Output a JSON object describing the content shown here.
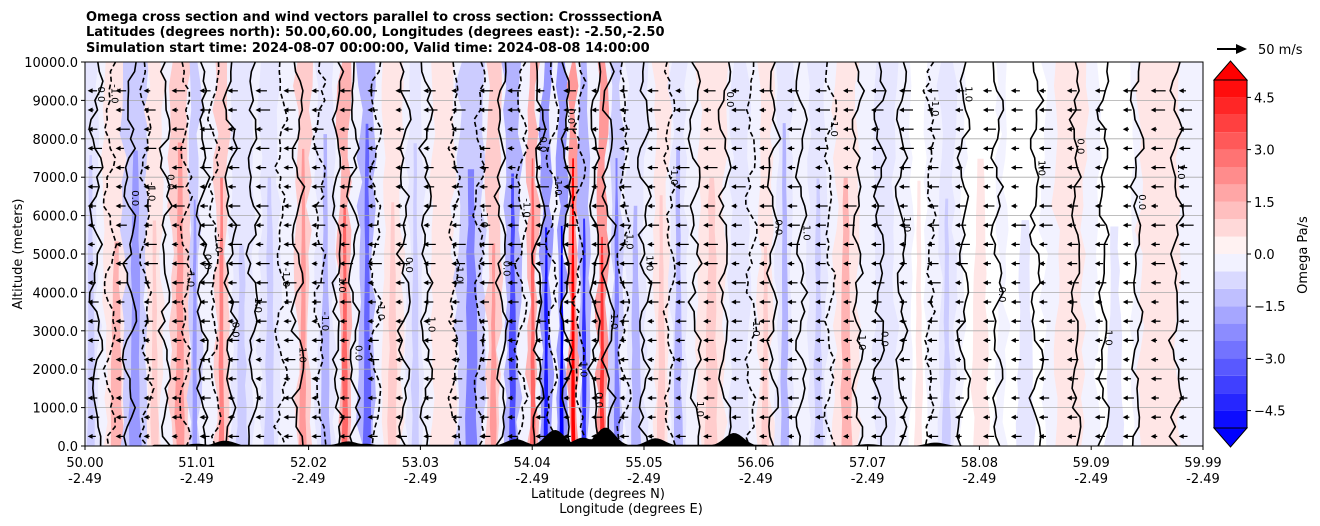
{
  "chart_data": {
    "type": "contour",
    "title_lines": [
      "Omega cross section and wind vectors parallel to cross section: CrosssectionA",
      "Latitudes (degrees north): 50.00,60.00, Longitudes (degrees east): -2.50,-2.50",
      "Simulation start time: 2024-08-07 00:00:00, Valid time: 2024-08-08 14:00:00"
    ],
    "ylabel": "Altitude (meters)",
    "xlabel_lat": "Latitude (degrees N)",
    "xlabel_lon": "Longitude (degrees E)",
    "ylim": [
      0,
      10000
    ],
    "y_ticks": [
      "0.0",
      "1000.0",
      "2000.0",
      "3000.0",
      "4000.0",
      "5000.0",
      "6000.0",
      "7000.0",
      "8000.0",
      "9000.0",
      "10000.0"
    ],
    "x_range": [
      50.0,
      59.99
    ],
    "x_ticks": [
      {
        "lat": "50.00",
        "lon": "-2.49"
      },
      {
        "lat": "51.01",
        "lon": "-2.49"
      },
      {
        "lat": "52.02",
        "lon": "-2.49"
      },
      {
        "lat": "53.03",
        "lon": "-2.49"
      },
      {
        "lat": "54.04",
        "lon": "-2.49"
      },
      {
        "lat": "55.05",
        "lon": "-2.49"
      },
      {
        "lat": "56.06",
        "lon": "-2.49"
      },
      {
        "lat": "57.07",
        "lon": "-2.49"
      },
      {
        "lat": "58.08",
        "lon": "-2.49"
      },
      {
        "lat": "59.09",
        "lon": "-2.49"
      },
      {
        "lat": "59.99",
        "lon": "-2.49"
      }
    ],
    "grid": "horizontal",
    "colorbar": {
      "label": "Omega Pa/s",
      "range": [
        -5.0,
        5.0
      ],
      "ticks": [
        "4.5",
        "3.0",
        "1.5",
        "0.0",
        "−1.5",
        "−3.0",
        "−4.5"
      ],
      "tick_values": [
        4.5,
        3.0,
        1.5,
        0.0,
        -1.5,
        -3.0,
        -4.5
      ],
      "levels": 20,
      "extend": "both",
      "cmap": "bwr"
    },
    "quiver_key": {
      "label": "50 m/s",
      "speed": 50
    },
    "contour_labels": [
      "0.0",
      "1.0",
      "-1.0",
      "-2.0"
    ],
    "bands": [
      {
        "lat": 50.05,
        "w": 0.08,
        "v": -1.0
      },
      {
        "lat": 50.28,
        "w": 0.12,
        "v": 1.5
      },
      {
        "lat": 50.45,
        "w": 0.12,
        "v": -1.8
      },
      {
        "lat": 50.62,
        "w": 0.08,
        "v": 1.2
      },
      {
        "lat": 50.85,
        "w": 0.1,
        "v": 2.2
      },
      {
        "lat": 50.98,
        "w": 0.06,
        "v": -2.0
      },
      {
        "lat": 51.22,
        "w": 0.06,
        "v": 2.5
      },
      {
        "lat": 51.4,
        "w": 0.12,
        "v": -1.2
      },
      {
        "lat": 51.65,
        "w": 0.1,
        "v": -0.8
      },
      {
        "lat": 51.95,
        "w": 0.07,
        "v": 1.8
      },
      {
        "lat": 52.15,
        "w": 0.09,
        "v": -1.5
      },
      {
        "lat": 52.32,
        "w": 0.06,
        "v": 3.2
      },
      {
        "lat": 52.52,
        "w": 0.08,
        "v": -2.8
      },
      {
        "lat": 52.75,
        "w": 0.1,
        "v": 1.0
      },
      {
        "lat": 52.95,
        "w": 0.08,
        "v": -0.9
      },
      {
        "lat": 53.2,
        "w": 0.12,
        "v": 0.6
      },
      {
        "lat": 53.45,
        "w": 0.14,
        "v": -2.5
      },
      {
        "lat": 53.65,
        "w": 0.07,
        "v": 2.0
      },
      {
        "lat": 53.82,
        "w": 0.08,
        "v": -3.5
      },
      {
        "lat": 54.0,
        "w": 0.05,
        "v": 3.0
      },
      {
        "lat": 54.12,
        "w": 0.05,
        "v": -4.5
      },
      {
        "lat": 54.26,
        "w": 0.04,
        "v": -5.0
      },
      {
        "lat": 54.36,
        "w": 0.04,
        "v": 4.8
      },
      {
        "lat": 54.46,
        "w": 0.05,
        "v": -3.8
      },
      {
        "lat": 54.62,
        "w": 0.05,
        "v": 4.0
      },
      {
        "lat": 54.75,
        "w": 0.06,
        "v": -2.4
      },
      {
        "lat": 54.92,
        "w": 0.1,
        "v": -1.4
      },
      {
        "lat": 55.15,
        "w": 0.08,
        "v": 0.9
      },
      {
        "lat": 55.3,
        "w": 0.08,
        "v": -1.6
      },
      {
        "lat": 55.6,
        "w": 0.14,
        "v": 0.9
      },
      {
        "lat": 55.85,
        "w": 0.1,
        "v": -0.7
      },
      {
        "lat": 56.08,
        "w": 0.07,
        "v": 1.1
      },
      {
        "lat": 56.25,
        "w": 0.08,
        "v": -1.3
      },
      {
        "lat": 56.55,
        "w": 0.09,
        "v": -1.0
      },
      {
        "lat": 56.8,
        "w": 0.12,
        "v": 1.6
      },
      {
        "lat": 57.15,
        "w": 0.1,
        "v": -0.6
      },
      {
        "lat": 57.45,
        "w": 0.08,
        "v": 0.5
      },
      {
        "lat": 57.7,
        "w": 0.08,
        "v": -1.1
      },
      {
        "lat": 58.0,
        "w": 0.18,
        "v": 0.5
      },
      {
        "lat": 58.4,
        "w": 0.2,
        "v": -0.4
      },
      {
        "lat": 58.8,
        "w": 0.16,
        "v": 0.6
      },
      {
        "lat": 59.2,
        "w": 0.18,
        "v": -0.3
      },
      {
        "lat": 59.6,
        "w": 0.2,
        "v": 0.7
      }
    ],
    "contours": [
      {
        "lat": 50.1,
        "style": "solid"
      },
      {
        "lat": 50.22,
        "style": "dashed"
      },
      {
        "lat": 50.4,
        "style": "solid"
      },
      {
        "lat": 50.55,
        "style": "dashed"
      },
      {
        "lat": 50.72,
        "style": "solid"
      },
      {
        "lat": 50.9,
        "style": "dashed"
      },
      {
        "lat": 51.05,
        "style": "solid"
      },
      {
        "lat": 51.15,
        "style": "dashed"
      },
      {
        "lat": 51.3,
        "style": "solid"
      },
      {
        "lat": 51.5,
        "style": "solid"
      },
      {
        "lat": 51.75,
        "style": "dashed"
      },
      {
        "lat": 51.9,
        "style": "solid"
      },
      {
        "lat": 52.1,
        "style": "dashed"
      },
      {
        "lat": 52.25,
        "style": "solid"
      },
      {
        "lat": 52.4,
        "style": "solid"
      },
      {
        "lat": 52.6,
        "style": "dashed"
      },
      {
        "lat": 52.85,
        "style": "solid"
      },
      {
        "lat": 53.05,
        "style": "solid"
      },
      {
        "lat": 53.3,
        "style": "dashed"
      },
      {
        "lat": 53.52,
        "style": "dashed"
      },
      {
        "lat": 53.72,
        "style": "solid"
      },
      {
        "lat": 53.9,
        "style": "dashed"
      },
      {
        "lat": 54.05,
        "style": "solid"
      },
      {
        "lat": 54.18,
        "style": "dashed"
      },
      {
        "lat": 54.3,
        "style": "solid"
      },
      {
        "lat": 54.41,
        "style": "dashed"
      },
      {
        "lat": 54.55,
        "style": "solid"
      },
      {
        "lat": 54.68,
        "style": "solid"
      },
      {
        "lat": 54.82,
        "style": "dashed"
      },
      {
        "lat": 55.0,
        "style": "solid"
      },
      {
        "lat": 55.22,
        "style": "dashed"
      },
      {
        "lat": 55.45,
        "style": "solid"
      },
      {
        "lat": 55.72,
        "style": "solid"
      },
      {
        "lat": 55.95,
        "style": "dashed"
      },
      {
        "lat": 56.15,
        "style": "solid"
      },
      {
        "lat": 56.4,
        "style": "solid"
      },
      {
        "lat": 56.65,
        "style": "dashed"
      },
      {
        "lat": 56.9,
        "style": "solid"
      },
      {
        "lat": 57.1,
        "style": "solid"
      },
      {
        "lat": 57.3,
        "style": "solid"
      },
      {
        "lat": 57.55,
        "style": "dashed"
      },
      {
        "lat": 57.85,
        "style": "solid"
      },
      {
        "lat": 58.15,
        "style": "solid"
      },
      {
        "lat": 58.5,
        "style": "solid"
      },
      {
        "lat": 58.85,
        "style": "solid"
      },
      {
        "lat": 59.1,
        "style": "solid"
      },
      {
        "lat": 59.4,
        "style": "solid"
      },
      {
        "lat": 59.75,
        "style": "solid"
      }
    ],
    "terrain_peaks": [
      {
        "lat": 51.0,
        "h": 60
      },
      {
        "lat": 51.25,
        "h": 140
      },
      {
        "lat": 52.35,
        "h": 120
      },
      {
        "lat": 52.5,
        "h": 60
      },
      {
        "lat": 53.85,
        "h": 180
      },
      {
        "lat": 54.2,
        "h": 420
      },
      {
        "lat": 54.45,
        "h": 220
      },
      {
        "lat": 54.65,
        "h": 480
      },
      {
        "lat": 55.1,
        "h": 200
      },
      {
        "lat": 55.8,
        "h": 340
      },
      {
        "lat": 57.0,
        "h": 50
      },
      {
        "lat": 57.6,
        "h": 90
      }
    ],
    "wind_levels": [
      250,
      750,
      1250,
      1750,
      2250,
      2750,
      3250,
      3750,
      4250,
      4750,
      5250,
      5750,
      6250,
      6750,
      7250,
      7750,
      8250,
      8750,
      9250
    ],
    "wind_step_deg": 0.25
  }
}
